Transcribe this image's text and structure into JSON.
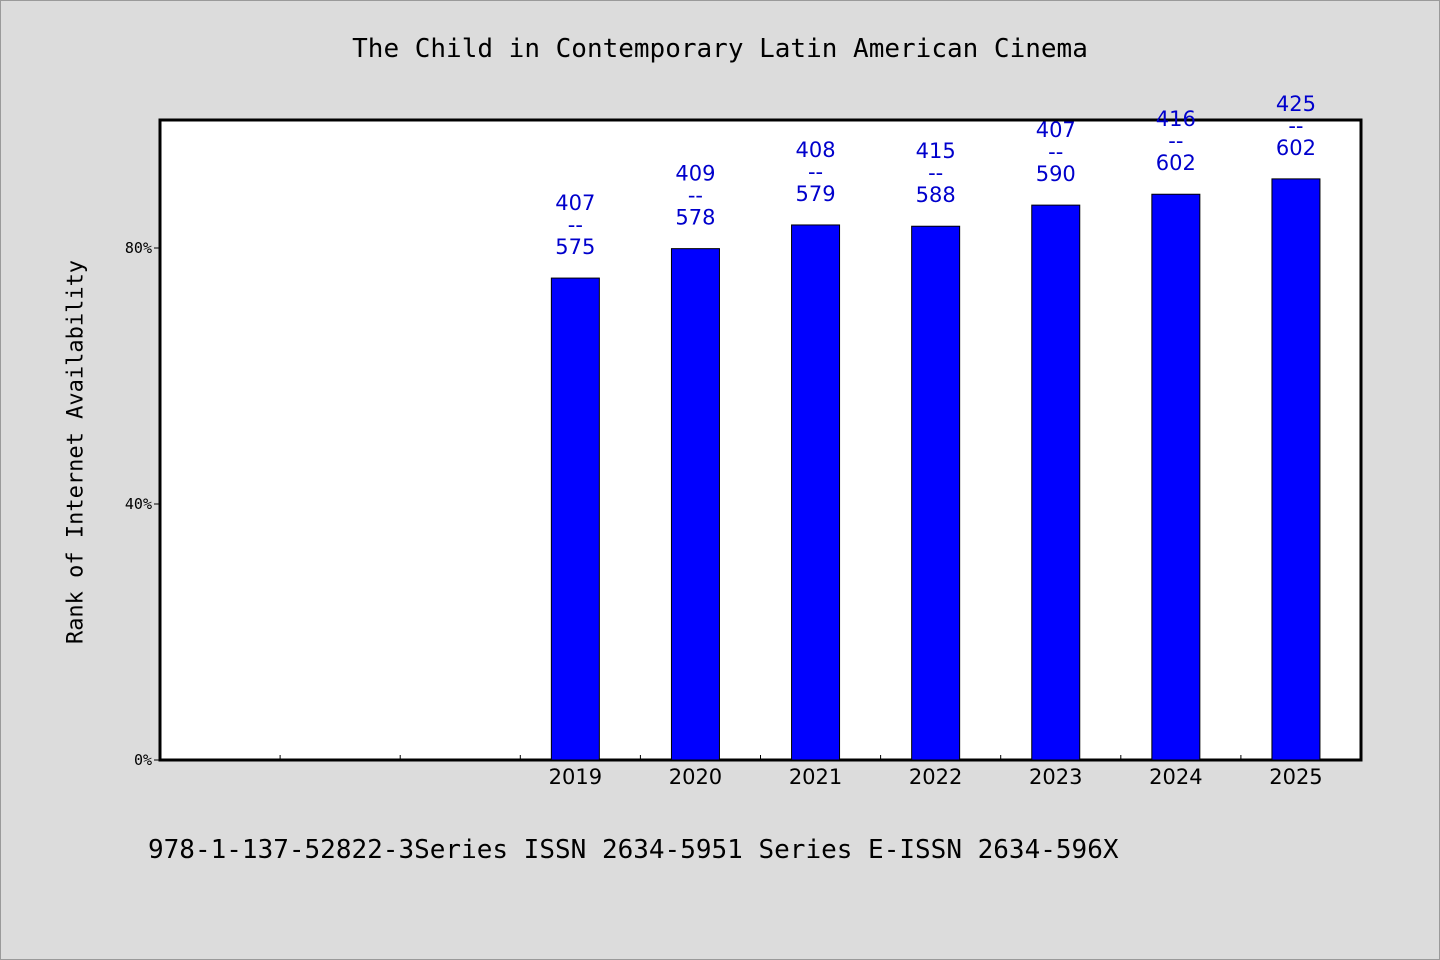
{
  "chart_data": {
    "type": "bar",
    "title": "The Child in Contemporary Latin American Cinema",
    "ylabel": "Rank of Internet Availability",
    "xlabel": "",
    "categories": [
      "",
      "",
      "",
      "2019",
      "2020",
      "2021",
      "2022",
      "2023",
      "2024",
      "2025"
    ],
    "values": [
      null,
      null,
      null,
      75.3,
      79.9,
      83.6,
      83.4,
      86.7,
      88.4,
      90.8
    ],
    "labels": [
      [
        "",
        "",
        ""
      ],
      [
        "",
        "",
        ""
      ],
      [
        "",
        "",
        ""
      ],
      [
        "407",
        "--",
        "575"
      ],
      [
        "409",
        "--",
        "578"
      ],
      [
        "408",
        "--",
        "579"
      ],
      [
        "415",
        "--",
        "588"
      ],
      [
        "407",
        "--",
        "590"
      ],
      [
        "416",
        "--",
        "602"
      ],
      [
        "425",
        "--",
        "602"
      ]
    ],
    "yticks": [
      "0%",
      "40%",
      "80%"
    ],
    "ytick_values": [
      0,
      40,
      80
    ],
    "ylim": [
      0,
      100
    ],
    "grid": false,
    "colors": {
      "bar": "#0000ff",
      "label": "#0000cc",
      "background": "#dcdcdc",
      "plot": "#ffffff"
    }
  },
  "footer": "978-1-137-52822-3Series ISSN 2634-5951 Series E-ISSN 2634-596X"
}
